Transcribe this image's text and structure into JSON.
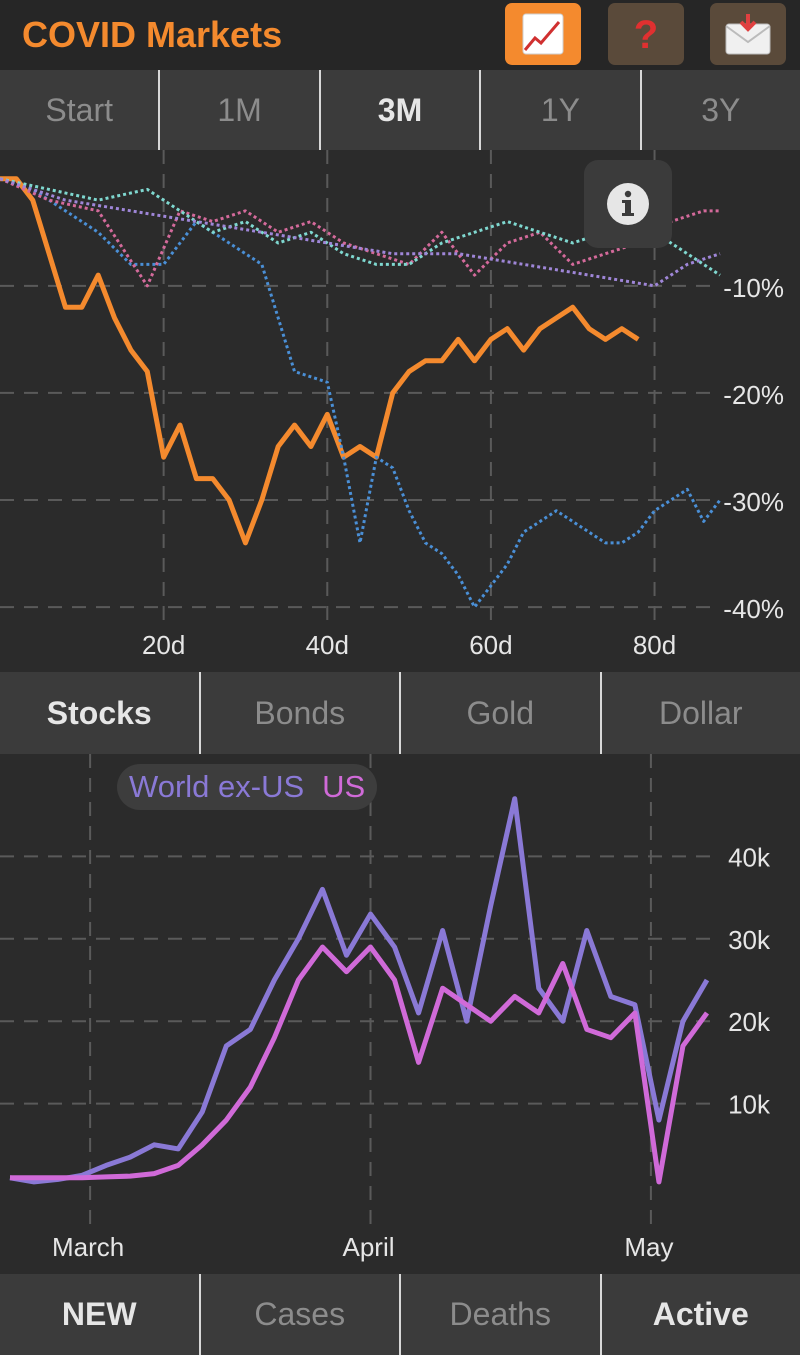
{
  "app": {
    "title": "COVID Markets"
  },
  "header": {
    "buttons": [
      {
        "name": "chart-icon",
        "bg": "#f48a2e"
      },
      {
        "name": "question-icon",
        "bg": "#5a4a3a"
      },
      {
        "name": "mail-icon",
        "bg": "#5a4a3a"
      }
    ]
  },
  "range_tabs": [
    "Start",
    "1M",
    "3M",
    "1Y",
    "3Y"
  ],
  "range_selected": "3M",
  "asset_tabs": [
    "Stocks",
    "Bonds",
    "Gold",
    "Dollar"
  ],
  "asset_selected": "Stocks",
  "metric_tabs": [
    "NEW",
    "Cases",
    "Deaths",
    "Active"
  ],
  "metric_selected": [
    "NEW",
    "Active"
  ],
  "legend": {
    "world_label": "World ex-US",
    "us_label": "US"
  },
  "colors": {
    "accent": "#f48a2e",
    "world": "#8a79d6",
    "us": "#d06ad8",
    "pink": "#d46a9b",
    "cyan": "#7fd8d0",
    "blue": "#4a8fd6",
    "lavender": "#9f86d8"
  },
  "chart_data": [
    {
      "type": "line",
      "title": "",
      "x_tick_labels": [
        "20d",
        "40d",
        "60d",
        "80d"
      ],
      "y_tick_labels": [
        "-10%",
        "-20%",
        "-30%",
        "-40%"
      ],
      "xlim": [
        0,
        88
      ],
      "ylim": [
        -44,
        1
      ],
      "grid": true,
      "series": [
        {
          "color": "#f48a2e",
          "style": "solid",
          "x": [
            0,
            2,
            4,
            6,
            8,
            10,
            12,
            14,
            16,
            18,
            20,
            22,
            24,
            26,
            28,
            30,
            32,
            34,
            36,
            38,
            40,
            42,
            44,
            46,
            48,
            50,
            52,
            54,
            56,
            58,
            60,
            62,
            64,
            66,
            68,
            70,
            72,
            74,
            76,
            78
          ],
          "y": [
            0,
            0,
            -2,
            -7,
            -12,
            -12,
            -9,
            -13,
            -16,
            -18,
            -26,
            -23,
            -28,
            -28,
            -30,
            -34,
            -30,
            -25,
            -23,
            -25,
            -22,
            -26,
            -25,
            -26,
            -20,
            -18,
            -17,
            -17,
            -15,
            -17,
            -15,
            -14,
            -16,
            -14,
            -13,
            -12,
            -14,
            -15,
            -14,
            -15
          ]
        },
        {
          "color": "#4a8fd6",
          "style": "dotted",
          "x": [
            0,
            4,
            8,
            12,
            16,
            20,
            24,
            28,
            32,
            36,
            40,
            42,
            44,
            46,
            48,
            50,
            52,
            54,
            56,
            58,
            60,
            62,
            64,
            66,
            68,
            70,
            72,
            74,
            76,
            78,
            80,
            82,
            84,
            86,
            88
          ],
          "y": [
            0,
            -1,
            -3,
            -5,
            -8,
            -8,
            -4,
            -6,
            -8,
            -18,
            -19,
            -26,
            -34,
            -26,
            -27,
            -31,
            -34,
            -35,
            -37,
            -40,
            -38,
            -36,
            -33,
            -32,
            -31,
            -32,
            -33,
            -34,
            -34,
            -33,
            -31,
            -30,
            -29,
            -32,
            -30
          ]
        },
        {
          "color": "#d46a9b",
          "style": "dotted",
          "x": [
            0,
            6,
            12,
            18,
            22,
            26,
            30,
            34,
            38,
            42,
            46,
            50,
            54,
            58,
            62,
            66,
            70,
            74,
            78,
            82,
            86,
            88
          ],
          "y": [
            0,
            -2,
            -3,
            -10,
            -3,
            -4,
            -3,
            -5,
            -4,
            -6,
            -7,
            -8,
            -5,
            -9,
            -6,
            -5,
            -8,
            -7,
            -6,
            -4,
            -3,
            -3
          ]
        },
        {
          "color": "#7fd8d0",
          "style": "dotted",
          "x": [
            0,
            6,
            12,
            18,
            22,
            26,
            30,
            34,
            38,
            42,
            46,
            50,
            54,
            58,
            62,
            66,
            70,
            74,
            78,
            82,
            86,
            88
          ],
          "y": [
            0,
            -1,
            -2,
            -1,
            -3,
            -5,
            -4,
            -6,
            -5,
            -7,
            -8,
            -8,
            -6,
            -5,
            -4,
            -5,
            -6,
            -5,
            -4,
            -6,
            -8,
            -9
          ]
        },
        {
          "color": "#9f86d8",
          "style": "dotted",
          "x": [
            0,
            8,
            16,
            24,
            32,
            40,
            48,
            56,
            64,
            72,
            80,
            84,
            88
          ],
          "y": [
            0,
            -2,
            -3,
            -4,
            -5,
            -6,
            -7,
            -7,
            -8,
            -9,
            -10,
            -8,
            -7
          ]
        }
      ]
    },
    {
      "type": "line",
      "title": "",
      "x_tick_labels": [
        "March",
        "April",
        "May"
      ],
      "y_tick_labels": [
        "10k",
        "20k",
        "30k",
        "40k"
      ],
      "xlim": [
        0,
        88
      ],
      "ylim": [
        0,
        50000
      ],
      "grid": true,
      "series": [
        {
          "name": "World ex-US",
          "color": "#8a79d6",
          "x": [
            0,
            3,
            6,
            9,
            12,
            15,
            18,
            21,
            24,
            27,
            30,
            33,
            36,
            39,
            42,
            45,
            48,
            51,
            54,
            57,
            60,
            63,
            66,
            69,
            72,
            75,
            78,
            81,
            84,
            87
          ],
          "y": [
            1000,
            500,
            800,
            1300,
            2500,
            3500,
            5000,
            4500,
            9000,
            17000,
            19000,
            25000,
            30000,
            36000,
            28000,
            33000,
            29000,
            21000,
            31000,
            20000,
            34000,
            47000,
            24000,
            20000,
            31000,
            23000,
            22000,
            8000,
            20000,
            25000
          ]
        },
        {
          "name": "US",
          "color": "#d06ad8",
          "x": [
            0,
            3,
            6,
            9,
            12,
            15,
            18,
            21,
            24,
            27,
            30,
            33,
            36,
            39,
            42,
            45,
            48,
            51,
            54,
            57,
            60,
            63,
            66,
            69,
            72,
            75,
            78,
            81,
            84,
            87
          ],
          "y": [
            1000,
            1000,
            1000,
            1000,
            1100,
            1200,
            1500,
            2500,
            5000,
            8000,
            12000,
            18000,
            25000,
            29000,
            26000,
            29000,
            25000,
            15000,
            24000,
            22000,
            20000,
            23000,
            21000,
            27000,
            19000,
            18000,
            21000,
            500,
            17000,
            21000
          ]
        }
      ]
    }
  ]
}
